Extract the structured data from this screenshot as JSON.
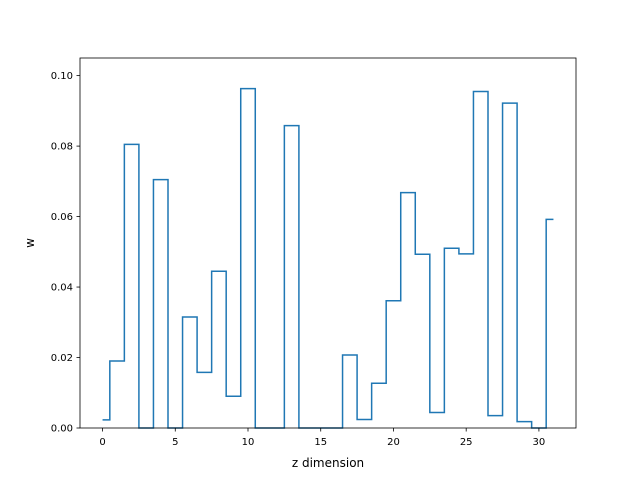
{
  "chart_data": {
    "type": "line",
    "drawstyle": "steps-mid",
    "title": "",
    "xlabel": "z dimension",
    "ylabel": "w",
    "xlim": [
      -1.55,
      32.55
    ],
    "ylim": [
      0,
      0.105
    ],
    "xticks": [
      0,
      5,
      10,
      15,
      20,
      25,
      30
    ],
    "xtick_labels": [
      "0",
      "5",
      "10",
      "15",
      "20",
      "25",
      "30"
    ],
    "yticks": [
      0,
      0.02,
      0.04,
      0.06,
      0.08,
      0.1
    ],
    "ytick_labels": [
      "0.00",
      "0.02",
      "0.04",
      "0.06",
      "0.08",
      "0.10"
    ],
    "grid": false,
    "legend": "none",
    "series": [
      {
        "color": "#1f77b4",
        "x": [
          0,
          1,
          2,
          3,
          4,
          5,
          6,
          7,
          8,
          9,
          10,
          11,
          12,
          13,
          14,
          15,
          16,
          17,
          18,
          19,
          20,
          21,
          22,
          23,
          24,
          25,
          26,
          27,
          28,
          29,
          30,
          31
        ],
        "values": [
          0.0023,
          0.019,
          0.0805,
          0.0,
          0.0705,
          0.0,
          0.0315,
          0.0158,
          0.0445,
          0.009,
          0.0963,
          0.0,
          0.0,
          0.0858,
          0.0,
          0.0,
          0.0,
          0.0207,
          0.0024,
          0.0127,
          0.0361,
          0.0668,
          0.0493,
          0.0044,
          0.051,
          0.0494,
          0.0955,
          0.0035,
          0.0922,
          0.0018,
          0.0,
          0.0592
        ]
      }
    ]
  }
}
